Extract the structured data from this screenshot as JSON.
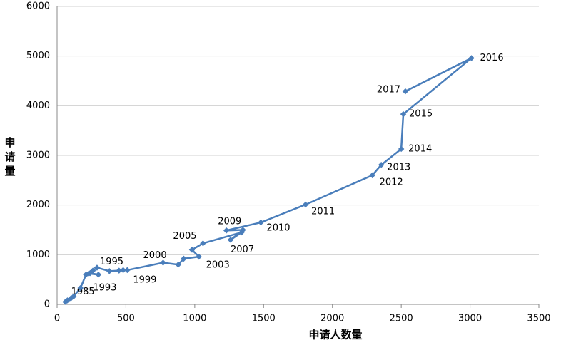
{
  "chart_data": {
    "type": "line",
    "x_label": "申请人数量",
    "y_label": "申请量",
    "x": [
      60,
      75,
      100,
      120,
      170,
      210,
      240,
      300,
      230,
      260,
      290,
      380,
      450,
      480,
      510,
      770,
      880,
      920,
      1030,
      980,
      1060,
      1340,
      1260,
      1350,
      1230,
      1480,
      1805,
      2290,
      2355,
      2500,
      2515,
      3010,
      2530
    ],
    "values": [
      50,
      80,
      120,
      160,
      330,
      600,
      630,
      600,
      620,
      680,
      740,
      670,
      680,
      690,
      690,
      840,
      800,
      920,
      960,
      1100,
      1230,
      1450,
      1300,
      1500,
      1490,
      1650,
      2010,
      2600,
      2810,
      3130,
      3830,
      4960,
      4290
    ],
    "point_labels": [
      "1985",
      null,
      null,
      null,
      null,
      null,
      null,
      null,
      "1993",
      null,
      "1995",
      null,
      null,
      null,
      "1999",
      "2000",
      null,
      null,
      "2003",
      null,
      "2005",
      null,
      "2007",
      null,
      "2009",
      "2010",
      "2011",
      "2012",
      "2013",
      "2014",
      "2015",
      "2016",
      "2017"
    ],
    "color": "#4a7ebb",
    "xlim": [
      0,
      3500
    ],
    "xticks": [
      0,
      500,
      1000,
      1500,
      2000,
      2500,
      3000,
      3500
    ],
    "ylim": [
      0,
      6000
    ],
    "yticks": [
      0,
      1000,
      2000,
      3000,
      4000,
      5000,
      6000
    ],
    "grid": true
  }
}
